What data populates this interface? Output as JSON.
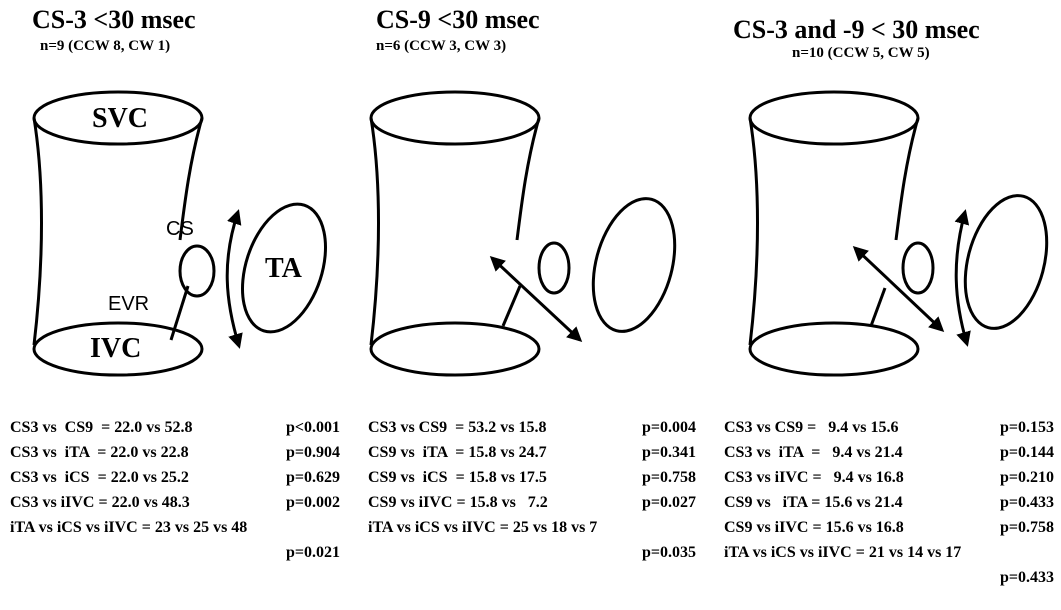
{
  "panels": [
    {
      "title": "CS-3 <30 msec",
      "subtitle": "n=9 (CCW 8, CW 1)",
      "labels": {
        "svc": "SVC",
        "ivc": "IVC",
        "cs": "CS",
        "ta": "TA",
        "evr": "EVR"
      },
      "stats": [
        [
          "CS3 vs  CS9  = 22.0 vs 52.8",
          "p<0.001"
        ],
        [
          "CS3 vs  iTA  = 22.0 vs 22.8",
          "p=0.904"
        ],
        [
          "CS3 vs  iCS  = 22.0 vs 25.2",
          "p=0.629"
        ],
        [
          "CS3 vs iIVC = 22.0 vs 48.3",
          "p=0.002"
        ],
        [
          "iTA vs iCS vs iIVC = 23 vs 25 vs 48",
          ""
        ],
        [
          "",
          "p=0.021"
        ]
      ]
    },
    {
      "title": "CS-9 <30 msec",
      "subtitle": "n=6 (CCW 3, CW 3)",
      "stats": [
        [
          "CS3 vs CS9  = 53.2 vs 15.8",
          "p=0.004"
        ],
        [
          "CS9 vs  iTA  = 15.8 vs 24.7",
          "p=0.341"
        ],
        [
          "CS9 vs  iCS  = 15.8 vs 17.5",
          "p=0.758"
        ],
        [
          "CS9 vs iIVC = 15.8 vs   7.2",
          "p=0.027"
        ],
        [
          "iTA vs iCS vs iIVC = 25 vs 18 vs 7",
          ""
        ],
        [
          "",
          "p=0.035"
        ]
      ]
    },
    {
      "title": "CS-3 and -9 < 30 msec",
      "subtitle": "n=10 (CCW 5, CW 5)",
      "stats": [
        [
          "CS3 vs CS9 =   9.4 vs 15.6",
          "p=0.153"
        ],
        [
          "CS3 vs  iTA  =   9.4 vs 21.4",
          "p=0.144"
        ],
        [
          "CS3 vs iIVC =   9.4 vs 16.8",
          "p=0.210"
        ],
        [
          "CS9 vs   iTA = 15.6 vs 21.4",
          "p=0.433"
        ],
        [
          "CS9 vs iIVC = 15.6 vs 16.8",
          "p=0.758"
        ],
        [
          "iTA vs iCS vs iIVC = 21 vs 14 vs 17",
          ""
        ],
        [
          "",
          "p=0.433"
        ]
      ]
    }
  ]
}
